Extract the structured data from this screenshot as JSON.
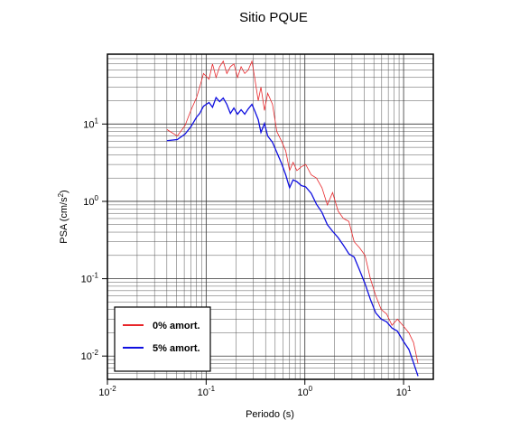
{
  "chart_data": {
    "type": "line",
    "title": "Sitio PQUE",
    "x_label": "Periodo (s)",
    "y_label": [
      "PSA (cm/s",
      "2",
      ")"
    ],
    "log_x": true,
    "log_y": true,
    "grid": true,
    "legend": "lower left",
    "xlim": [
      0.01,
      20
    ],
    "ylim": [
      0.005,
      80
    ],
    "xticks": [
      {
        "value": 0.01,
        "label": "10",
        "sup": "-2"
      },
      {
        "value": 0.1,
        "label": "10",
        "sup": "-1"
      },
      {
        "value": 1,
        "label": "10",
        "sup": "0"
      },
      {
        "value": 10,
        "label": "10",
        "sup": "1"
      }
    ],
    "yticks": [
      {
        "value": 0.01,
        "label": "10",
        "sup": "-2"
      },
      {
        "value": 0.1,
        "label": "10",
        "sup": "-1"
      },
      {
        "value": 1,
        "label": "10",
        "sup": "0"
      },
      {
        "value": 10,
        "label": "10",
        "sup": "1"
      }
    ],
    "xminorticks": [
      0.02,
      0.03,
      0.04,
      0.05,
      0.06,
      0.07,
      0.08,
      0.09,
      0.2,
      0.3,
      0.4,
      0.5,
      0.6,
      0.7,
      0.8,
      0.9,
      2,
      3,
      4,
      5,
      6,
      7,
      8,
      9,
      20
    ],
    "yminorticks": [
      0.006,
      0.007,
      0.008,
      0.009,
      0.02,
      0.03,
      0.04,
      0.05,
      0.06,
      0.07,
      0.08,
      0.09,
      0.2,
      0.3,
      0.4,
      0.5,
      0.6,
      0.7,
      0.8,
      0.9,
      2,
      3,
      4,
      5,
      6,
      7,
      8,
      9,
      20,
      30,
      40,
      50,
      60,
      70,
      80
    ],
    "x": [
      0.04,
      0.051,
      0.061,
      0.07,
      0.08,
      0.086,
      0.094,
      0.107,
      0.116,
      0.126,
      0.137,
      0.149,
      0.162,
      0.176,
      0.191,
      0.208,
      0.226,
      0.246,
      0.267,
      0.291,
      0.31,
      0.337,
      0.359,
      0.39,
      0.42,
      0.47,
      0.52,
      0.58,
      0.64,
      0.7,
      0.76,
      0.83,
      0.92,
      1.02,
      1.16,
      1.31,
      1.49,
      1.69,
      1.91,
      2.17,
      2.46,
      2.79,
      3.16,
      3.59,
      4.07,
      4.61,
      5.23,
      5.93,
      6.73,
      7.63,
      8.66,
      9.8,
      11.3,
      12.6,
      14.0
    ],
    "series": [
      {
        "name": "0% amort.",
        "color": "#e8262a",
        "width": 0.8,
        "values": [
          8.5,
          7.0,
          9.5,
          15,
          22,
          30,
          45,
          38,
          60,
          40,
          55,
          65,
          45,
          55,
          60,
          40,
          55,
          45,
          50,
          65,
          40,
          20,
          30,
          15,
          25,
          18,
          8,
          6,
          4.5,
          2.5,
          3.2,
          2.5,
          2.8,
          3.0,
          2.2,
          2.0,
          1.5,
          0.9,
          1.3,
          0.75,
          0.6,
          0.55,
          0.3,
          0.25,
          0.2,
          0.1,
          0.06,
          0.04,
          0.035,
          0.025,
          0.03,
          0.025,
          0.02,
          0.015,
          0.008
        ]
      },
      {
        "name": "5% amort.",
        "color": "#1010e0",
        "width": 1.3,
        "values": [
          6.1,
          6.3,
          7.4,
          9.2,
          12.3,
          13.7,
          17,
          19,
          16.5,
          22,
          19.5,
          21.7,
          18,
          13.7,
          16.1,
          13.4,
          15.3,
          13.4,
          15.7,
          18,
          14.9,
          11.4,
          7.8,
          10.2,
          7.0,
          5.8,
          4.3,
          3.1,
          2.2,
          1.5,
          1.9,
          1.8,
          1.6,
          1.54,
          1.27,
          0.92,
          0.72,
          0.5,
          0.41,
          0.34,
          0.27,
          0.21,
          0.19,
          0.128,
          0.086,
          0.054,
          0.036,
          0.03,
          0.0277,
          0.023,
          0.021,
          0.016,
          0.0122,
          0.0082,
          0.0055
        ]
      }
    ]
  }
}
